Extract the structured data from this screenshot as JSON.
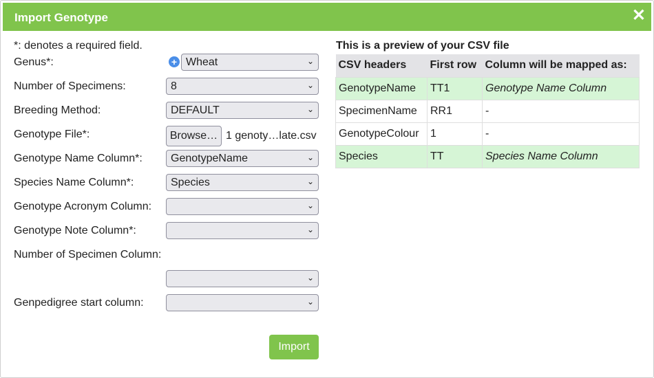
{
  "dialog": {
    "title": "Import Genotype",
    "close": "✕"
  },
  "form": {
    "required_note": "*: denotes a required field.",
    "genus": {
      "label": "Genus*:",
      "value": "Wheat"
    },
    "num_specimens": {
      "label": "Number of Specimens:",
      "value": "8"
    },
    "breeding_method": {
      "label": "Breeding Method:",
      "value": "DEFAULT"
    },
    "genotype_file": {
      "label": "Genotype File*:",
      "button": "Browse…",
      "file": "1 genoty…late.csv"
    },
    "genotype_name_col": {
      "label": "Genotype Name Column*:",
      "value": "GenotypeName"
    },
    "species_name_col": {
      "label": "Species Name Column*:",
      "value": "Species"
    },
    "acronym_col": {
      "label": "Genotype Acronym Column:",
      "value": ""
    },
    "note_col": {
      "label": "Genotype Note Column*:",
      "value": ""
    },
    "num_specimen_col": {
      "label": "Number of Specimen Column:",
      "value": ""
    },
    "genpedigree_col": {
      "label": "Genpedigree start column:",
      "value": ""
    },
    "import": "Import"
  },
  "preview": {
    "title": "This is a preview of your CSV file",
    "headers": [
      "CSV headers",
      "First row",
      "Column will be mapped as:"
    ],
    "rows": [
      [
        "GenotypeName",
        "TT1",
        "Genotype Name Column"
      ],
      [
        "SpecimenName",
        "RR1",
        "-"
      ],
      [
        "GenotypeColour",
        "1",
        "-"
      ],
      [
        "Species",
        "TT",
        "Species Name Column"
      ]
    ]
  },
  "colors": {
    "accent": "#80c44c",
    "mapped_row": "#d6f5d6"
  }
}
